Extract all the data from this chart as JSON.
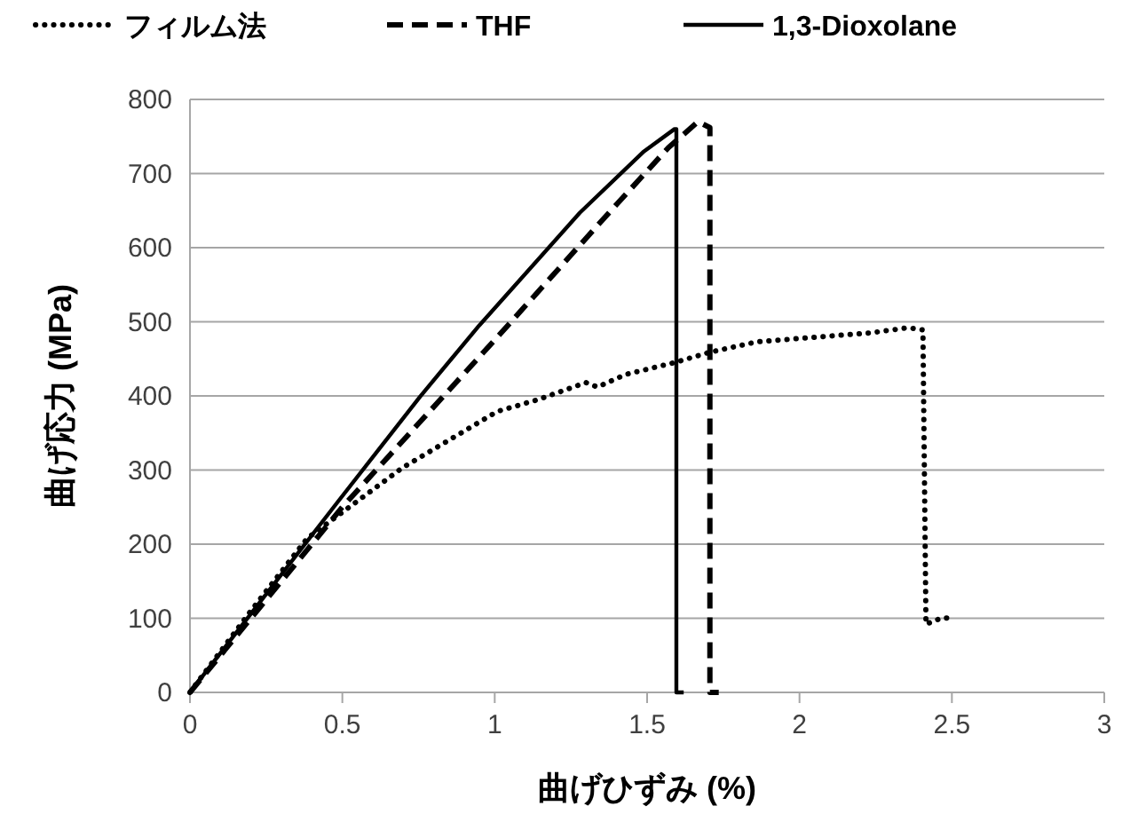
{
  "chart_data": {
    "type": "line",
    "xlabel": "曲げひずみ (%)",
    "ylabel": "曲げ応力 (MPa)",
    "xlim": [
      0,
      3
    ],
    "xticks": [
      0,
      0.5,
      1,
      1.5,
      2,
      2.5,
      3
    ],
    "ylim": [
      0,
      800
    ],
    "yticks": [
      0,
      100,
      200,
      300,
      400,
      500,
      600,
      700,
      800
    ],
    "grid": "y",
    "legend": "top",
    "marker": "none",
    "series": [
      {
        "name": "フィルム法",
        "color": "#000000",
        "line_style": "dotted",
        "x": [
          0,
          0.2,
          0.385,
          0.697,
          1.008,
          1.142,
          1.299,
          1.337,
          1.43,
          1.59,
          1.706,
          1.861,
          2.231,
          2.357,
          2.405,
          2.415,
          2.464,
          2.51
        ],
        "values": [
          0,
          110,
          208,
          303,
          379,
          395,
          418,
          412,
          429,
          445,
          459,
          473,
          485,
          492,
          489,
          92,
          100,
          101
        ]
      },
      {
        "name": "THF",
        "color": "#000000",
        "line_style": "dashed",
        "x": [
          0,
          0.5,
          1.008,
          1.357,
          1.57,
          1.667,
          1.706,
          1.706,
          1.735
        ],
        "values": [
          0,
          250,
          479,
          639,
          735,
          770,
          762,
          0,
          0
        ]
      },
      {
        "name": "1,3-Dioxolane",
        "color": "#000000",
        "line_style": "solid",
        "x": [
          0,
          0.483,
          0.755,
          0.949,
          1.279,
          1.49,
          1.59,
          1.596,
          1.596,
          1.62
        ],
        "values": [
          0,
          256,
          399,
          495,
          647,
          730,
          760,
          760,
          0,
          0
        ]
      }
    ]
  }
}
